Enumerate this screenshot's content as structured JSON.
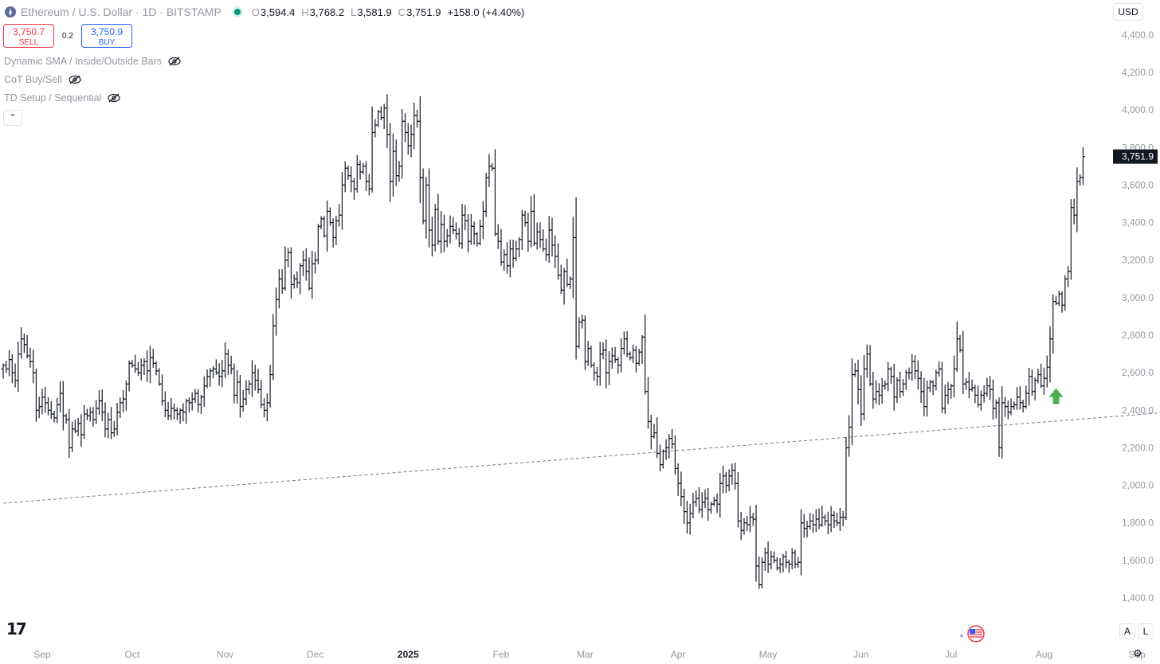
{
  "header": {
    "symbol": "Ethereum / U.S. Dollar · 1D · BITSTAMP",
    "o_label": "O",
    "o_value": "3,594.4",
    "h_label": "H",
    "h_value": "3,768.2",
    "l_label": "L",
    "l_value": "3,581.9",
    "c_label": "C",
    "c_value": "3,751.9",
    "change": "+158.0 (+4.40%)"
  },
  "trade": {
    "sell_price": "3,750.7",
    "sell_label": "SELL",
    "spread": "0.2",
    "buy_price": "3,750.9",
    "buy_label": "BUY"
  },
  "indicators": [
    {
      "label": "Dynamic SMA / Inside/Outside Bars"
    },
    {
      "label": "CoT Buy/Sell"
    },
    {
      "label": "TD Setup / Sequential"
    }
  ],
  "currency": "USD",
  "scale_buttons": {
    "auto": "A",
    "log": "L"
  },
  "icons": [
    "eth-icon",
    "eye-off-icon",
    "chevron-up-icon",
    "tradingview-logo-icon",
    "us-flag-icon",
    "gear-icon",
    "up-arrow-signal-icon"
  ],
  "colors": {
    "bar": "#131722",
    "signal": "#4caf50",
    "sell": "#f23645",
    "buy": "#2962ff",
    "trend_line": "#787b86"
  },
  "chart_data": {
    "type": "ohlc",
    "title": "Ethereum / U.S. Dollar · 1D · BITSTAMP",
    "xlabel": "",
    "ylabel": "",
    "ylim": [
      1300,
      4500
    ],
    "y_ticks": [
      "4,400.0",
      "4,200.0",
      "4,000.0",
      "3,800.0",
      "3,600.0",
      "3,400.0",
      "3,200.0",
      "3,000.0",
      "2,800.0",
      "2,600.0",
      "2,400.0",
      "2,200.0",
      "2,000.0",
      "1,800.0",
      "1,600.0",
      "1,400.0"
    ],
    "y_tick_values": [
      4400,
      4200,
      4000,
      3800,
      3600,
      3400,
      3200,
      3000,
      2800,
      2600,
      2400,
      2200,
      2000,
      1800,
      1600,
      1400
    ],
    "x_ticks": [
      "Sep",
      "Oct",
      "Nov",
      "Dec",
      "2025",
      "Feb",
      "Mar",
      "Apr",
      "May",
      "Jun",
      "Jul",
      "Aug",
      "Sep"
    ],
    "x_tick_dates": [
      "2024-09-01",
      "2024-10-01",
      "2024-11-01",
      "2024-12-01",
      "2025-01-01",
      "2025-02-01",
      "2025-03-01",
      "2025-04-01",
      "2025-05-01",
      "2025-06-01",
      "2025-07-01",
      "2025-08-01",
      "2025-09-01"
    ],
    "x_range": [
      "2024-08-19",
      "2025-09-16"
    ],
    "last_price_label": "3,751.9",
    "last_price": 3751.9,
    "closes": [
      2640,
      2620,
      2670,
      2600,
      2560,
      2700,
      2780,
      2750,
      2690,
      2660,
      2600,
      2400,
      2420,
      2470,
      2440,
      2400,
      2380,
      2360,
      2430,
      2490,
      2370,
      2350,
      2200,
      2300,
      2290,
      2330,
      2270,
      2380,
      2370,
      2390,
      2350,
      2410,
      2450,
      2390,
      2300,
      2350,
      2280,
      2300,
      2390,
      2440,
      2460,
      2540,
      2650,
      2640,
      2620,
      2600,
      2640,
      2660,
      2610,
      2680,
      2650,
      2610,
      2540,
      2450,
      2400,
      2370,
      2410,
      2400,
      2380,
      2400,
      2390,
      2450,
      2440,
      2460,
      2490,
      2430,
      2470,
      2530,
      2580,
      2610,
      2620,
      2600,
      2580,
      2610,
      2700,
      2640,
      2620,
      2480,
      2550,
      2420,
      2460,
      2510,
      2540,
      2600,
      2560,
      2510,
      2430,
      2400,
      2440,
      2590,
      2850,
      2990,
      3100,
      3050,
      3200,
      3240,
      3070,
      3100,
      3080,
      3170,
      3200,
      3140,
      3050,
      3180,
      3200,
      3380,
      3420,
      3330,
      3460,
      3400,
      3320,
      3410,
      3440,
      3600,
      3690,
      3650,
      3620,
      3580,
      3710,
      3670,
      3700,
      3620,
      3580,
      3880,
      3920,
      3990,
      3960,
      4010,
      3870,
      3620,
      3780,
      3650,
      3700,
      3940,
      3880,
      3810,
      3870,
      3970,
      3940,
      3640,
      3410,
      3600,
      3360,
      3280,
      3470,
      3300,
      3390,
      3300,
      3330,
      3380,
      3360,
      3340,
      3290,
      3440,
      3410,
      3300,
      3380,
      3340,
      3290,
      3380,
      3460,
      3640,
      3700,
      3690,
      3340,
      3300,
      3190,
      3230,
      3170,
      3260,
      3210,
      3260,
      3310,
      3440,
      3400,
      3300,
      3460,
      3290,
      3350,
      3310,
      3260,
      3230,
      3360,
      3280,
      3220,
      3120,
      3040,
      3140,
      3070,
      3100,
      3320,
      2740,
      2870,
      2880,
      2660,
      2730,
      2640,
      2600,
      2580,
      2700,
      2720,
      2600,
      2660,
      2690,
      2670,
      2640,
      2730,
      2780,
      2700,
      2680,
      2720,
      2650,
      2710,
      2790,
      2500,
      2340,
      2260,
      2280,
      2170,
      2110,
      2180,
      2200,
      2250,
      2220,
      2090,
      2010,
      1940,
      1860,
      1800,
      1850,
      1910,
      1930,
      1870,
      1910,
      1930,
      1870,
      1900,
      1920,
      1900,
      2010,
      2050,
      2000,
      2050,
      2080,
      2010,
      1810,
      1760,
      1800,
      1790,
      1830,
      1820,
      1570,
      1470,
      1590,
      1640,
      1580,
      1620,
      1600,
      1560,
      1580,
      1620,
      1590,
      1580,
      1640,
      1580,
      1590,
      1800,
      1770,
      1780,
      1810,
      1790,
      1820,
      1790,
      1830,
      1810,
      1790,
      1840,
      1810,
      1800,
      1830,
      1830,
      2200,
      2310,
      2590,
      2610,
      2510,
      2380,
      2620,
      2700,
      2540,
      2460,
      2500,
      2480,
      2530,
      2540,
      2620,
      2580,
      2470,
      2560,
      2500,
      2540,
      2600,
      2600,
      2660,
      2610,
      2570,
      2500,
      2420,
      2520,
      2550,
      2530,
      2600,
      2620,
      2410,
      2480,
      2510,
      2530,
      2620,
      2780,
      2720,
      2540,
      2550,
      2510,
      2520,
      2480,
      2430,
      2480,
      2490,
      2530,
      2510,
      2410,
      2440,
      2200,
      2440,
      2420,
      2390,
      2420,
      2430,
      2470,
      2440,
      2420,
      2490,
      2580,
      2500,
      2560,
      2590,
      2530,
      2570,
      2630,
      2780,
      2980,
      2970,
      3020,
      2960,
      3100,
      3140,
      3480,
      3440,
      3620,
      3640,
      3751.9
    ],
    "signal": {
      "type": "up-arrow",
      "bar_index": 351,
      "value": 2420
    },
    "trend_line": {
      "style": "dashed",
      "start_date": "2024-08-19",
      "start_value": 1905,
      "end_date": "2025-09-16",
      "end_value": 2395
    }
  }
}
